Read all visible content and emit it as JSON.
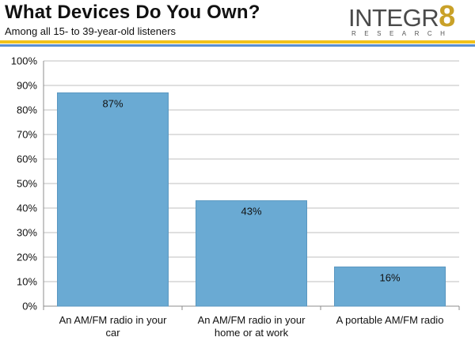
{
  "header": {
    "title": "What Devices Do You Own?",
    "subtitle": "Among  all 15- to 39-year-old listeners",
    "logo_text": "INTEGR",
    "logo_digit": "8",
    "logo_tagline": "RESEARCH"
  },
  "colors": {
    "bar": "#6aaad3",
    "bar_stroke": "#5a97c0",
    "grid": "#bfbfbf",
    "gold_rule": "#f2c21a",
    "blue_rule": "#5b8fd1"
  },
  "chart_data": {
    "type": "bar",
    "title": "",
    "xlabel": "",
    "ylabel": "",
    "categories": [
      [
        "An AM/FM radio in your",
        "car"
      ],
      [
        "An AM/FM radio in your",
        "home or at work"
      ],
      [
        "A portable AM/FM radio"
      ]
    ],
    "values": [
      87,
      43,
      16
    ],
    "data_labels": [
      "87%",
      "43%",
      "16%"
    ],
    "ylim": [
      0,
      100
    ],
    "yticks": [
      0,
      10,
      20,
      30,
      40,
      50,
      60,
      70,
      80,
      90,
      100
    ],
    "ytick_labels": [
      "0%",
      "10%",
      "20%",
      "30%",
      "40%",
      "50%",
      "60%",
      "70%",
      "80%",
      "90%",
      "100%"
    ],
    "grid": true,
    "legend": "none"
  }
}
